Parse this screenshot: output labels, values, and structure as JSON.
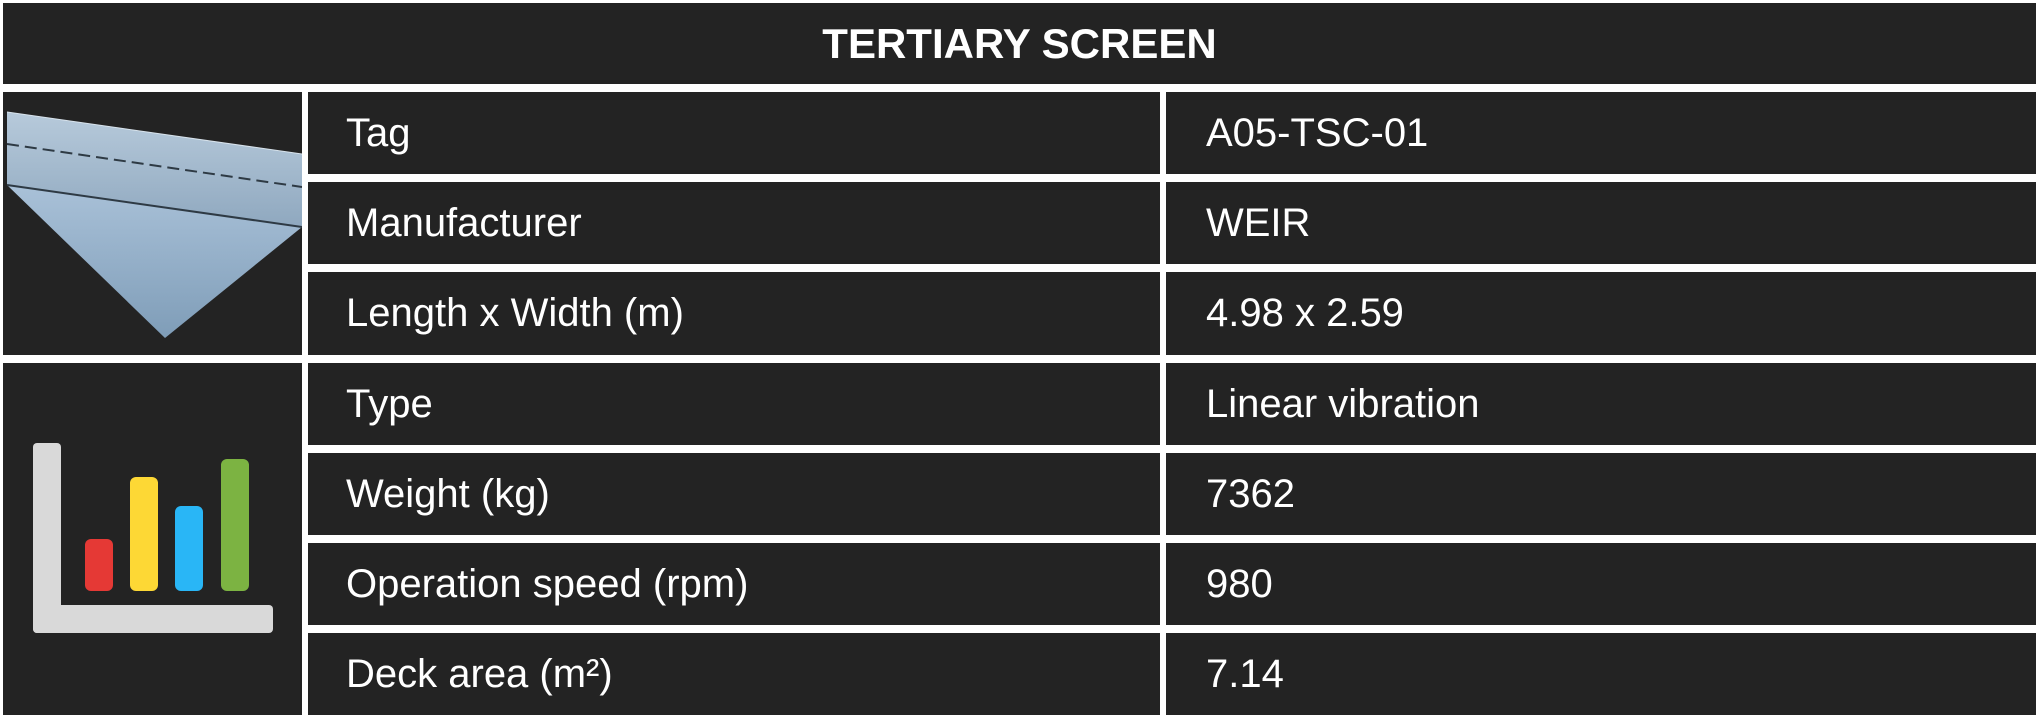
{
  "title": "TERTIARY SCREEN",
  "icons": {
    "equipment_image": "screen-deck-image",
    "stats_icon": "bar-chart-icon",
    "bar_colors": [
      "#e53935",
      "#fdd835",
      "#29b6f6",
      "#7cb342"
    ]
  },
  "groups": [
    {
      "rows": [
        {
          "label": "Tag",
          "value": "A05-TSC-01"
        },
        {
          "label": "Manufacturer",
          "value": "WEIR"
        },
        {
          "label": "Length x Width (m)",
          "value": "4.98 x 2.59"
        }
      ]
    },
    {
      "rows": [
        {
          "label": "Type",
          "value": "Linear vibration"
        },
        {
          "label": "Weight (kg)",
          "value": "7362"
        },
        {
          "label": "Operation speed (rpm)",
          "value": "980"
        },
        {
          "label": "Deck area (m²)",
          "value": "7.14"
        }
      ]
    }
  ]
}
